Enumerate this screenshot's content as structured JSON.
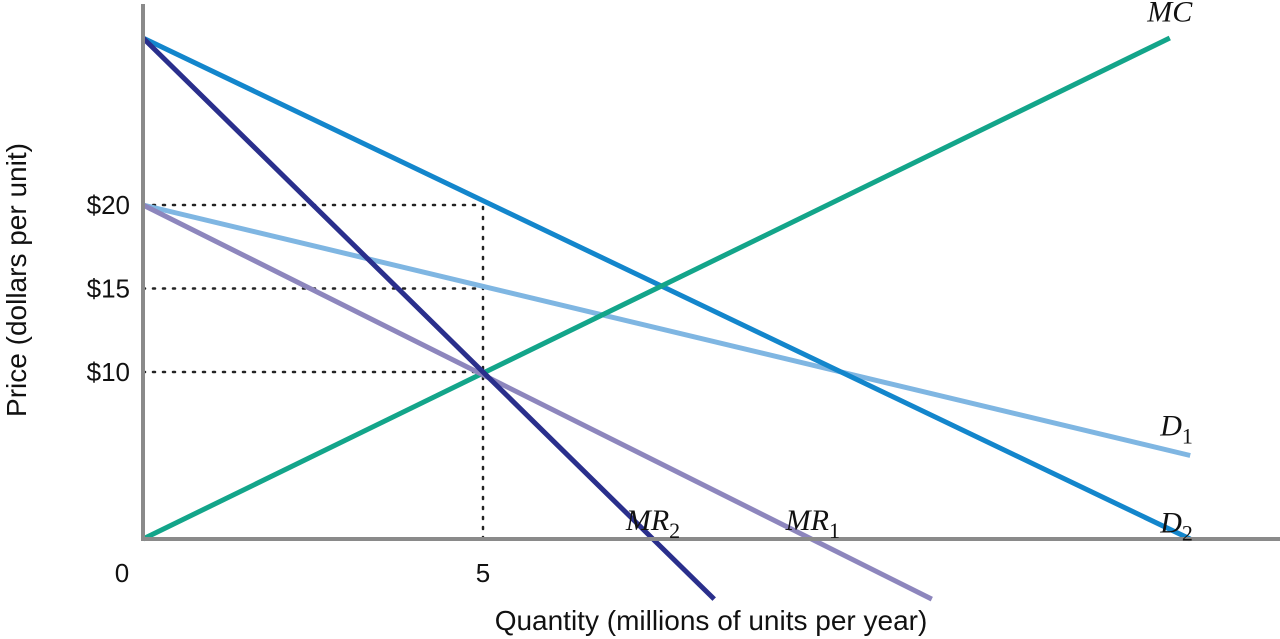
{
  "chart_data": {
    "type": "line",
    "title": "",
    "xlabel": "Quantity (millions of units per year)",
    "ylabel": "Price (dollars per unit)",
    "xlim": [
      0,
      15.4
    ],
    "ylim": [
      0,
      30
    ],
    "grid": false,
    "x_ticks": [
      {
        "value": 0,
        "label": "0"
      },
      {
        "value": 5,
        "label": "5"
      }
    ],
    "y_ticks": [
      {
        "value": 10,
        "label": "$10"
      },
      {
        "value": 15,
        "label": "$15"
      },
      {
        "value": 20,
        "label": "$20"
      }
    ],
    "reference_lines": [
      {
        "from": [
          0,
          20
        ],
        "to": [
          5,
          20
        ]
      },
      {
        "from": [
          0,
          15
        ],
        "to": [
          5,
          15
        ]
      },
      {
        "from": [
          0,
          10
        ],
        "to": [
          5,
          10
        ]
      },
      {
        "from": [
          5,
          0
        ],
        "to": [
          5,
          20
        ]
      }
    ],
    "series": [
      {
        "name": "MC",
        "label_main": "MC",
        "label_sub": "",
        "color": "#13a58a",
        "points": [
          [
            0,
            0
          ],
          [
            15.1,
            30
          ]
        ],
        "label_at": [
          15.1,
          31.0
        ]
      },
      {
        "name": "D1",
        "label_main": "D",
        "label_sub": "1",
        "color": "#7fb6e2",
        "points": [
          [
            0,
            20
          ],
          [
            15.4,
            5
          ]
        ],
        "label_at": [
          15.2,
          6.2
        ]
      },
      {
        "name": "D2",
        "label_main": "D",
        "label_sub": "2",
        "color": "#1386cc",
        "points": [
          [
            0,
            30
          ],
          [
            15.4,
            0
          ]
        ],
        "label_at": [
          15.2,
          0.4
        ]
      },
      {
        "name": "MR1",
        "label_main": "MR",
        "label_sub": "1",
        "color": "#8d86bd",
        "points": [
          [
            0,
            20
          ],
          [
            11.6,
            -3.6
          ]
        ],
        "label_at": [
          9.85,
          0.55
        ]
      },
      {
        "name": "MR2",
        "label_main": "MR",
        "label_sub": "2",
        "color": "#2a2f8c",
        "points": [
          [
            0,
            30
          ],
          [
            8.4,
            -3.6
          ]
        ],
        "label_at": [
          7.5,
          0.55
        ]
      }
    ]
  }
}
